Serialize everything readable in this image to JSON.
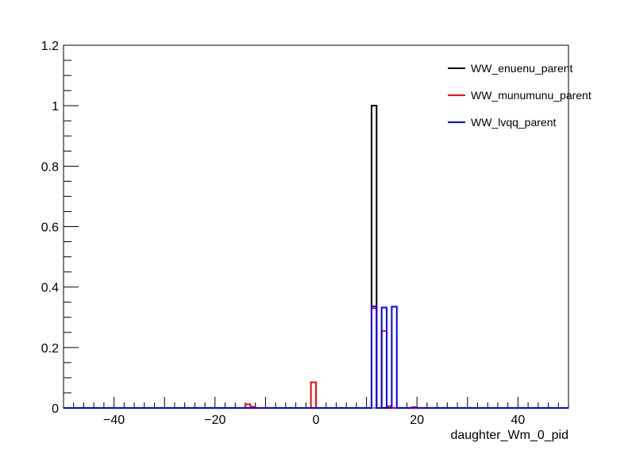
{
  "chart_data": {
    "type": "histogram",
    "title": "",
    "xlabel": "daughter_Wm_0_pid",
    "ylabel": "",
    "xlim": [
      -50,
      50
    ],
    "ylim": [
      0,
      1.2
    ],
    "bin_width": 1,
    "grid": false,
    "legend_position": "top-right",
    "xticks": [
      -40,
      -20,
      0,
      20,
      40
    ],
    "xtick_labels": [
      "−40",
      "−20",
      "0",
      "20",
      "40"
    ],
    "yticks": [
      0,
      0.2,
      0.4,
      0.6,
      0.8,
      1,
      1.2
    ],
    "ytick_labels": [
      "0",
      "0.2",
      "0.4",
      "0.6",
      "0.8",
      "1",
      "1.2"
    ],
    "series": [
      {
        "name": "WW_enuenu_parent",
        "color": "#000000",
        "bins": [
          {
            "x": 11,
            "y": 1.0
          }
        ]
      },
      {
        "name": "WW_munumunu_parent",
        "color": "#ff0000",
        "bins": [
          {
            "x": -14,
            "y": 0.012
          },
          {
            "x": -13,
            "y": 0.004
          },
          {
            "x": -1,
            "y": 0.085
          },
          {
            "x": 11,
            "y": 0.33
          },
          {
            "x": 13,
            "y": 0.255
          },
          {
            "x": 14,
            "y": 0.006
          },
          {
            "x": 19,
            "y": 0.003
          }
        ]
      },
      {
        "name": "WW_lvqq_parent",
        "color": "#0000ff",
        "bins": [
          {
            "x": 11,
            "y": 0.336
          },
          {
            "x": 13,
            "y": 0.332
          },
          {
            "x": 15,
            "y": 0.335
          }
        ]
      }
    ]
  }
}
